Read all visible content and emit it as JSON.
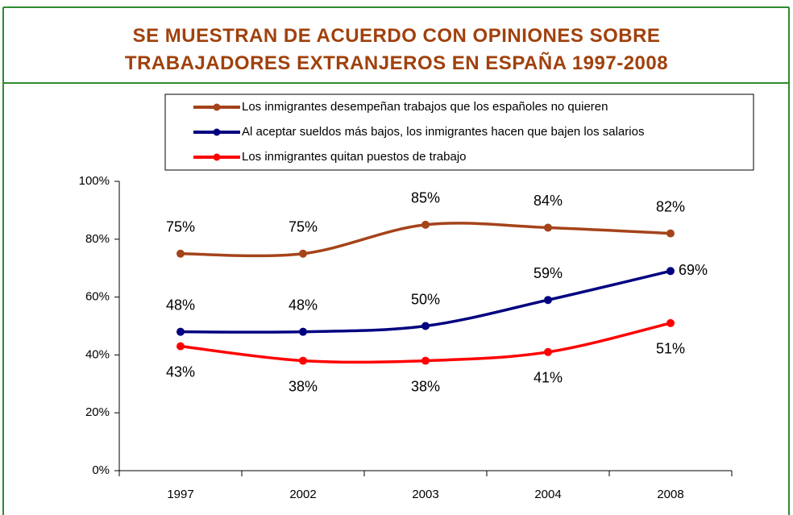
{
  "chart_data": {
    "type": "line",
    "title": "SE MUESTRAN DE ACUERDO CON OPINIONES SOBRE TRABAJADORES EXTRANJEROS EN ESPAÑA 1997-2008",
    "categories": [
      "1997",
      "2002",
      "2003",
      "2004",
      "2008"
    ],
    "series": [
      {
        "name": "Los inmigrantes desempeñan trabajos que los españoles no quieren",
        "color": "#a5431a",
        "values": [
          75,
          75,
          85,
          84,
          82
        ],
        "value_labels": [
          "75%",
          "75%",
          "85%",
          "84%",
          "82%"
        ]
      },
      {
        "name": "Al aceptar sueldos más bajos, los inmigrantes hacen que bajen los salarios",
        "color": "#000080",
        "values": [
          48,
          48,
          50,
          59,
          69
        ],
        "value_labels": [
          "48%",
          "48%",
          "50%",
          "59%",
          "69%"
        ]
      },
      {
        "name": "Los inmigrantes quitan puestos de trabajo",
        "color": "#ff0000",
        "values": [
          43,
          38,
          38,
          41,
          51
        ],
        "value_labels": [
          "43%",
          "38%",
          "38%",
          "41%",
          "51%"
        ]
      }
    ],
    "ylim": [
      0,
      100
    ],
    "yticks": [
      {
        "value": 0,
        "label": "0%"
      },
      {
        "value": 20,
        "label": "20%"
      },
      {
        "value": 40,
        "label": "40%"
      },
      {
        "value": 60,
        "label": "60%"
      },
      {
        "value": 80,
        "label": "80%"
      },
      {
        "value": 100,
        "label": "100%"
      }
    ],
    "legend": "top"
  }
}
